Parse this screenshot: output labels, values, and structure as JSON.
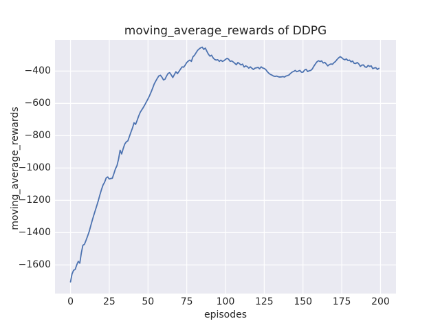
{
  "figure": {
    "background": "#ffffff",
    "plot_background": "#eaeaf2",
    "grid_color": "#ffffff",
    "text_color": "#262626"
  },
  "chart_data": {
    "type": "line",
    "title": "moving_average_rewards of DDPG",
    "xlabel": "episodes",
    "ylabel": "moving_average_rewards",
    "xlim": [
      -10,
      210
    ],
    "ylim": [
      -1777,
      -207
    ],
    "grid": true,
    "legend": false,
    "xticks": [
      0,
      25,
      50,
      75,
      100,
      125,
      150,
      175,
      200
    ],
    "xtick_labels": [
      "0",
      "25",
      "50",
      "75",
      "100",
      "125",
      "150",
      "175",
      "200"
    ],
    "yticks": [
      -400,
      -600,
      -800,
      -1000,
      -1200,
      -1400,
      -1600
    ],
    "ytick_labels": [
      "−400",
      "−600",
      "−800",
      "−1000",
      "−1200",
      "−1400",
      "−1600"
    ],
    "series": [
      {
        "name": "moving_average_rewards",
        "color": "#4c72b0",
        "line_width": 1.8,
        "x_start": 0,
        "x_step": 1,
        "values": [
          -1705,
          -1655,
          -1633,
          -1628,
          -1600,
          -1578,
          -1589,
          -1525,
          -1478,
          -1472,
          -1448,
          -1422,
          -1395,
          -1360,
          -1325,
          -1293,
          -1262,
          -1232,
          -1200,
          -1165,
          -1133,
          -1105,
          -1088,
          -1062,
          -1055,
          -1068,
          -1065,
          -1063,
          -1035,
          -1005,
          -985,
          -945,
          -890,
          -913,
          -880,
          -852,
          -838,
          -832,
          -805,
          -778,
          -752,
          -720,
          -730,
          -705,
          -678,
          -655,
          -640,
          -625,
          -608,
          -590,
          -572,
          -552,
          -530,
          -506,
          -480,
          -462,
          -445,
          -430,
          -426,
          -438,
          -455,
          -450,
          -430,
          -414,
          -410,
          -424,
          -440,
          -422,
          -404,
          -416,
          -402,
          -388,
          -374,
          -376,
          -363,
          -347,
          -338,
          -332,
          -340,
          -312,
          -302,
          -287,
          -272,
          -263,
          -256,
          -252,
          -266,
          -258,
          -278,
          -296,
          -308,
          -302,
          -318,
          -328,
          -332,
          -330,
          -340,
          -332,
          -340,
          -336,
          -328,
          -321,
          -327,
          -340,
          -337,
          -344,
          -352,
          -361,
          -347,
          -354,
          -362,
          -357,
          -375,
          -368,
          -372,
          -382,
          -374,
          -382,
          -390,
          -382,
          -380,
          -377,
          -386,
          -374,
          -381,
          -384,
          -391,
          -404,
          -414,
          -421,
          -425,
          -431,
          -433,
          -431,
          -435,
          -437,
          -436,
          -434,
          -437,
          -431,
          -428,
          -424,
          -414,
          -406,
          -402,
          -396,
          -404,
          -400,
          -396,
          -407,
          -407,
          -394,
          -389,
          -403,
          -398,
          -396,
          -387,
          -370,
          -356,
          -343,
          -336,
          -341,
          -337,
          -350,
          -346,
          -356,
          -368,
          -360,
          -356,
          -358,
          -348,
          -340,
          -328,
          -318,
          -311,
          -317,
          -326,
          -330,
          -325,
          -335,
          -332,
          -343,
          -338,
          -352,
          -353,
          -347,
          -356,
          -371,
          -363,
          -362,
          -374,
          -377,
          -365,
          -371,
          -368,
          -385,
          -381,
          -379,
          -390,
          -383
        ]
      }
    ]
  }
}
